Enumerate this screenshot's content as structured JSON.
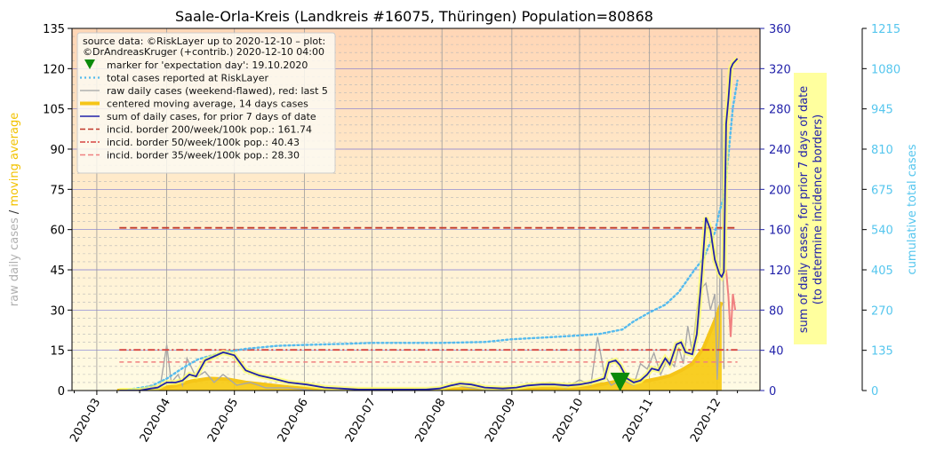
{
  "chart_data": {
    "type": "line",
    "title": "Saale-Orla-Kreis (Landkreis #16075, Thüringen) Population=80868",
    "x_tick_labels": [
      "2020-03",
      "2020-04",
      "2020-05",
      "2020-06",
      "2020-07",
      "2020-08",
      "2020-09",
      "2020-10",
      "2020-11",
      "2020-12"
    ],
    "left_axis": {
      "label_parts": [
        "raw daily cases",
        "/",
        "moving average"
      ],
      "label_colors": [
        "#b0b0b0",
        "#333333",
        "#f2c200"
      ],
      "ylim": [
        0,
        135
      ],
      "ticks": [
        0,
        15,
        30,
        45,
        60,
        75,
        90,
        105,
        120,
        135
      ]
    },
    "right_axis_1": {
      "label_lines": [
        "sum of daily cases, for prior 7 days of date",
        "(to determine incidence borders)"
      ],
      "color": "#2222aa",
      "ylim": [
        0,
        360
      ],
      "ticks": [
        0,
        40,
        80,
        120,
        160,
        200,
        240,
        280,
        320,
        360
      ]
    },
    "right_axis_2": {
      "label": "cumulative total cases",
      "color": "#55c6ee",
      "ylim": [
        0,
        1215
      ],
      "ticks": [
        0,
        135,
        270,
        405,
        540,
        675,
        810,
        945,
        1080,
        1215
      ]
    },
    "legend": {
      "placement": "top-left",
      "source_lines": [
        "source data: ©RiskLayer up to 2020-12-10 – plot:",
        "©DrAndreasKruger (+contrib.) 2020-12-10 04:00"
      ],
      "entries": [
        {
          "label": "marker for 'expectation day': 19.10.2020",
          "style": "marker",
          "color": "#0a8a0a"
        },
        {
          "label": "total cases reported at RiskLayer",
          "style": "dotted",
          "color": "#55bbee"
        },
        {
          "label": "raw daily cases (weekend-flawed), red: last 5",
          "style": "solid",
          "color": "#b0b0b0"
        },
        {
          "label": "centered moving average, 14 days cases",
          "style": "thick",
          "color": "#f5c518"
        },
        {
          "label": "sum of daily cases, for prior 7 days of date",
          "style": "solid",
          "color": "#2222aa"
        },
        {
          "label": "incid. border 200/week/100k pop.: 161.74",
          "style": "dashed",
          "color": "#c0392b"
        },
        {
          "label": "incid. border 50/week/100k pop.: 40.43",
          "style": "dashdot",
          "color": "#d64541"
        },
        {
          "label": "incid. border 35/week/100k pop.: 28.30",
          "style": "dashed",
          "color": "#f08080"
        }
      ]
    },
    "incidence_borders": [
      161.74,
      40.43,
      28.3
    ],
    "expectation_day": "2020-10-19",
    "expectation_marker_y": 3,
    "cumulative_total": {
      "dates": [
        "2020-03-15",
        "2020-03-25",
        "2020-04-01",
        "2020-04-08",
        "2020-04-15",
        "2020-04-22",
        "2020-04-29",
        "2020-05-06",
        "2020-05-20",
        "2020-06-01",
        "2020-06-20",
        "2020-07-01",
        "2020-07-20",
        "2020-08-01",
        "2020-08-20",
        "2020-09-01",
        "2020-09-20",
        "2020-10-01",
        "2020-10-10",
        "2020-10-20",
        "2020-10-25",
        "2020-11-01",
        "2020-11-08",
        "2020-11-14",
        "2020-11-20",
        "2020-11-25",
        "2020-11-30",
        "2020-12-02",
        "2020-12-04",
        "2020-12-06",
        "2020-12-08",
        "2020-12-10"
      ],
      "values": [
        3,
        15,
        40,
        75,
        105,
        120,
        132,
        140,
        150,
        153,
        157,
        160,
        160,
        160,
        163,
        172,
        180,
        185,
        190,
        205,
        232,
        262,
        288,
        330,
        395,
        445,
        530,
        600,
        650,
        790,
        950,
        1040
      ]
    },
    "sum_7_days": {
      "dates": [
        "2020-03-11",
        "2020-03-20",
        "2020-03-25",
        "2020-03-28",
        "2020-04-01",
        "2020-04-05",
        "2020-04-08",
        "2020-04-11",
        "2020-04-14",
        "2020-04-18",
        "2020-04-22",
        "2020-04-26",
        "2020-05-01",
        "2020-05-06",
        "2020-05-12",
        "2020-05-18",
        "2020-05-25",
        "2020-06-02",
        "2020-06-10",
        "2020-06-17",
        "2020-06-25",
        "2020-07-05",
        "2020-07-15",
        "2020-07-25",
        "2020-07-31",
        "2020-08-05",
        "2020-08-09",
        "2020-08-14",
        "2020-08-20",
        "2020-08-28",
        "2020-09-03",
        "2020-09-08",
        "2020-09-14",
        "2020-09-20",
        "2020-09-26",
        "2020-10-01",
        "2020-10-06",
        "2020-10-09",
        "2020-10-12",
        "2020-10-14",
        "2020-10-17",
        "2020-10-19",
        "2020-10-22",
        "2020-10-25",
        "2020-10-28",
        "2020-10-31",
        "2020-11-02",
        "2020-11-05",
        "2020-11-08",
        "2020-11-10",
        "2020-11-13",
        "2020-11-15",
        "2020-11-17",
        "2020-11-20",
        "2020-11-22",
        "2020-11-24",
        "2020-11-26",
        "2020-11-28",
        "2020-11-30",
        "2020-12-02",
        "2020-12-03",
        "2020-12-04",
        "2020-12-05",
        "2020-12-06",
        "2020-12-07",
        "2020-12-08",
        "2020-12-10"
      ],
      "values": [
        0,
        0,
        2,
        3,
        8,
        8,
        10,
        16,
        14,
        30,
        34,
        38,
        35,
        20,
        15,
        12,
        8,
        6,
        3,
        2,
        1,
        1,
        1,
        1,
        2,
        5,
        7,
        6,
        3,
        2,
        3,
        5,
        6,
        6,
        5,
        6,
        8,
        10,
        12,
        28,
        30,
        25,
        12,
        8,
        10,
        16,
        22,
        20,
        32,
        26,
        46,
        48,
        38,
        36,
        56,
        110,
        172,
        160,
        130,
        116,
        113,
        118,
        265,
        290,
        320,
        325,
        330
      ]
    },
    "moving_average_14d": {
      "dates": [
        "2020-03-10",
        "2020-03-25",
        "2020-03-31",
        "2020-04-05",
        "2020-04-12",
        "2020-04-20",
        "2020-04-28",
        "2020-05-06",
        "2020-05-15",
        "2020-05-25",
        "2020-06-05",
        "2020-06-20",
        "2020-07-05",
        "2020-07-25",
        "2020-08-05",
        "2020-08-15",
        "2020-08-25",
        "2020-09-05",
        "2020-09-15",
        "2020-09-25",
        "2020-10-05",
        "2020-10-12",
        "2020-10-18",
        "2020-10-24",
        "2020-10-30",
        "2020-11-05",
        "2020-11-10",
        "2020-11-15",
        "2020-11-20",
        "2020-11-25",
        "2020-11-30",
        "2020-12-03"
      ],
      "values": [
        0,
        0.3,
        1,
        2,
        3.5,
        4.5,
        4.2,
        3,
        2.2,
        1.3,
        0.6,
        0.3,
        0.2,
        0.2,
        0.5,
        0.8,
        0.6,
        0.7,
        1,
        1.2,
        1.5,
        2.5,
        3.5,
        3.8,
        3.5,
        4.5,
        5.5,
        7.5,
        10,
        16,
        26,
        33
      ]
    },
    "raw_daily": {
      "dates": [
        "2020-03-20",
        "2020-03-25",
        "2020-03-29",
        "2020-04-01",
        "2020-04-03",
        "2020-04-06",
        "2020-04-08",
        "2020-04-10",
        "2020-04-14",
        "2020-04-18",
        "2020-04-22",
        "2020-04-26",
        "2020-05-02",
        "2020-05-08",
        "2020-05-15",
        "2020-05-25",
        "2020-06-05",
        "2020-06-20",
        "2020-07-10",
        "2020-08-01",
        "2020-08-07",
        "2020-08-14",
        "2020-08-25",
        "2020-09-03",
        "2020-09-10",
        "2020-09-18",
        "2020-09-25",
        "2020-10-01",
        "2020-10-06",
        "2020-10-09",
        "2020-10-12",
        "2020-10-15",
        "2020-10-20",
        "2020-10-25",
        "2020-10-28",
        "2020-10-31",
        "2020-11-03",
        "2020-11-06",
        "2020-11-09",
        "2020-11-12",
        "2020-11-14",
        "2020-11-16",
        "2020-11-18",
        "2020-11-20",
        "2020-11-22",
        "2020-11-24",
        "2020-11-26",
        "2020-11-28",
        "2020-11-30",
        "2020-12-01",
        "2020-12-02",
        "2020-12-03",
        "2020-12-04"
      ],
      "values": [
        0,
        2,
        1,
        17,
        3,
        6,
        2,
        12,
        5,
        7,
        3,
        6,
        2,
        3,
        1,
        1,
        0,
        0,
        0,
        1,
        2,
        1,
        0,
        1,
        2,
        3,
        1,
        4,
        2,
        20,
        6,
        2,
        4,
        2,
        10,
        8,
        14,
        6,
        12,
        9,
        16,
        10,
        24,
        14,
        30,
        38,
        40,
        30,
        36,
        4,
        22,
        120,
        8
      ]
    },
    "raw_daily_last5": {
      "dates": [
        "2020-12-05",
        "2020-12-06",
        "2020-12-07",
        "2020-12-08",
        "2020-12-09"
      ],
      "values": [
        45,
        35,
        20,
        36,
        30
      ]
    }
  }
}
